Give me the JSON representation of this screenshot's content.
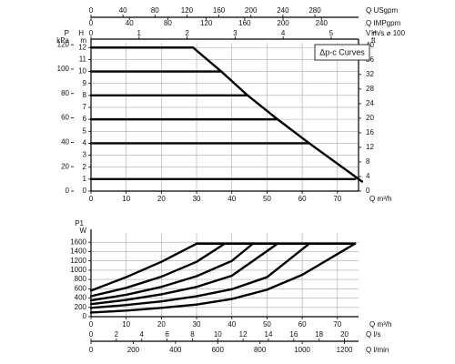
{
  "chart_data": [
    {
      "type": "line",
      "annotation": "Δp-c Curves",
      "xlabel": "Q m³/h",
      "ylabel": "H",
      "yunit": "m",
      "xlim": [
        0,
        76
      ],
      "xticks": [
        0,
        10,
        20,
        30,
        40,
        50,
        60,
        70
      ],
      "ylim": [
        0,
        12.4
      ],
      "yticks": [
        0,
        1,
        2,
        3,
        4,
        5,
        6,
        7,
        8,
        9,
        10,
        11,
        12
      ],
      "grid": true,
      "extra_axes": [
        {
          "side": "top",
          "label": "Q USgpm",
          "lim": [
            0,
            334.6
          ],
          "ticks": [
            0,
            40,
            80,
            120,
            160,
            200,
            240,
            280
          ]
        },
        {
          "side": "top",
          "label": "Q IMPgpm",
          "lim": [
            0,
            278.6
          ],
          "ticks": [
            0,
            40,
            80,
            120,
            160,
            200,
            240
          ]
        },
        {
          "side": "top",
          "label": "V m/s ⌀ 100",
          "lim": [
            0,
            5.57
          ],
          "ticks": [
            0,
            1,
            2,
            3,
            4,
            5
          ]
        },
        {
          "side": "left",
          "label": "P",
          "unit": "kPa",
          "lim": [
            0,
            121.6
          ],
          "ticks": [
            0,
            20,
            40,
            60,
            80,
            100,
            120
          ]
        },
        {
          "side": "right",
          "label": "H",
          "unit": "ft",
          "lim": [
            0,
            40.7
          ],
          "ticks": [
            0,
            4,
            8,
            12,
            16,
            20,
            24,
            28,
            32,
            36,
            40
          ]
        }
      ],
      "series": [
        {
          "color": "#000000",
          "x": [
            0,
            29
          ],
          "values": [
            12,
            12
          ]
        },
        {
          "color": "#000000",
          "x": [
            0,
            37
          ],
          "values": [
            10,
            10
          ]
        },
        {
          "color": "#000000",
          "x": [
            0,
            44.5
          ],
          "values": [
            8,
            8
          ]
        },
        {
          "color": "#000000",
          "x": [
            0,
            53
          ],
          "values": [
            6,
            6
          ]
        },
        {
          "color": "#000000",
          "x": [
            0,
            62
          ],
          "values": [
            4,
            4
          ]
        },
        {
          "color": "#000000",
          "x": [
            0,
            75
          ],
          "values": [
            1,
            1
          ]
        },
        {
          "color": "#000000",
          "x": [
            29,
            37,
            44.5,
            53,
            62,
            77
          ],
          "values": [
            12,
            10,
            8,
            6,
            4,
            0.8
          ]
        }
      ]
    },
    {
      "type": "line",
      "xlabel": "Q m³/h",
      "ylabel": "P1",
      "yunit": "W",
      "xlim": [
        0,
        76
      ],
      "xticks": [
        0,
        10,
        20,
        30,
        40,
        50,
        60,
        70
      ],
      "ylim": [
        0,
        1800
      ],
      "yticks": [
        0,
        200,
        400,
        600,
        800,
        1000,
        1200,
        1400,
        1600
      ],
      "grid": true,
      "extra_axes": [
        {
          "side": "bottom",
          "label": "Q l/s",
          "lim": [
            0,
            21.11
          ],
          "ticks": [
            0,
            2,
            4,
            6,
            8,
            10,
            12,
            14,
            16,
            18,
            20
          ]
        },
        {
          "side": "bottom",
          "label": "Q l/min",
          "lim": [
            0,
            1266.7
          ],
          "ticks": [
            0,
            200,
            400,
            600,
            800,
            1000,
            1200
          ]
        }
      ],
      "series": [
        {
          "color": "#000000",
          "x": [
            0,
            10,
            20,
            30
          ],
          "values": [
            560,
            850,
            1180,
            1570
          ]
        },
        {
          "color": "#000000",
          "x": [
            0,
            10,
            20,
            30,
            38
          ],
          "values": [
            440,
            620,
            860,
            1180,
            1570
          ]
        },
        {
          "color": "#000000",
          "x": [
            0,
            10,
            20,
            30,
            40,
            46
          ],
          "values": [
            350,
            470,
            640,
            870,
            1200,
            1570
          ]
        },
        {
          "color": "#000000",
          "x": [
            0,
            10,
            20,
            30,
            40,
            53
          ],
          "values": [
            270,
            360,
            480,
            640,
            880,
            1570
          ]
        },
        {
          "color": "#000000",
          "x": [
            0,
            10,
            20,
            30,
            40,
            50,
            62
          ],
          "values": [
            190,
            250,
            330,
            440,
            590,
            850,
            1570
          ]
        },
        {
          "color": "#000000",
          "x": [
            0,
            10,
            20,
            30,
            40,
            50,
            60,
            75
          ],
          "values": [
            90,
            130,
            190,
            260,
            380,
            580,
            900,
            1570
          ]
        },
        {
          "color": "#000000",
          "x": [
            30,
            75
          ],
          "values": [
            1570,
            1570
          ]
        }
      ]
    }
  ]
}
